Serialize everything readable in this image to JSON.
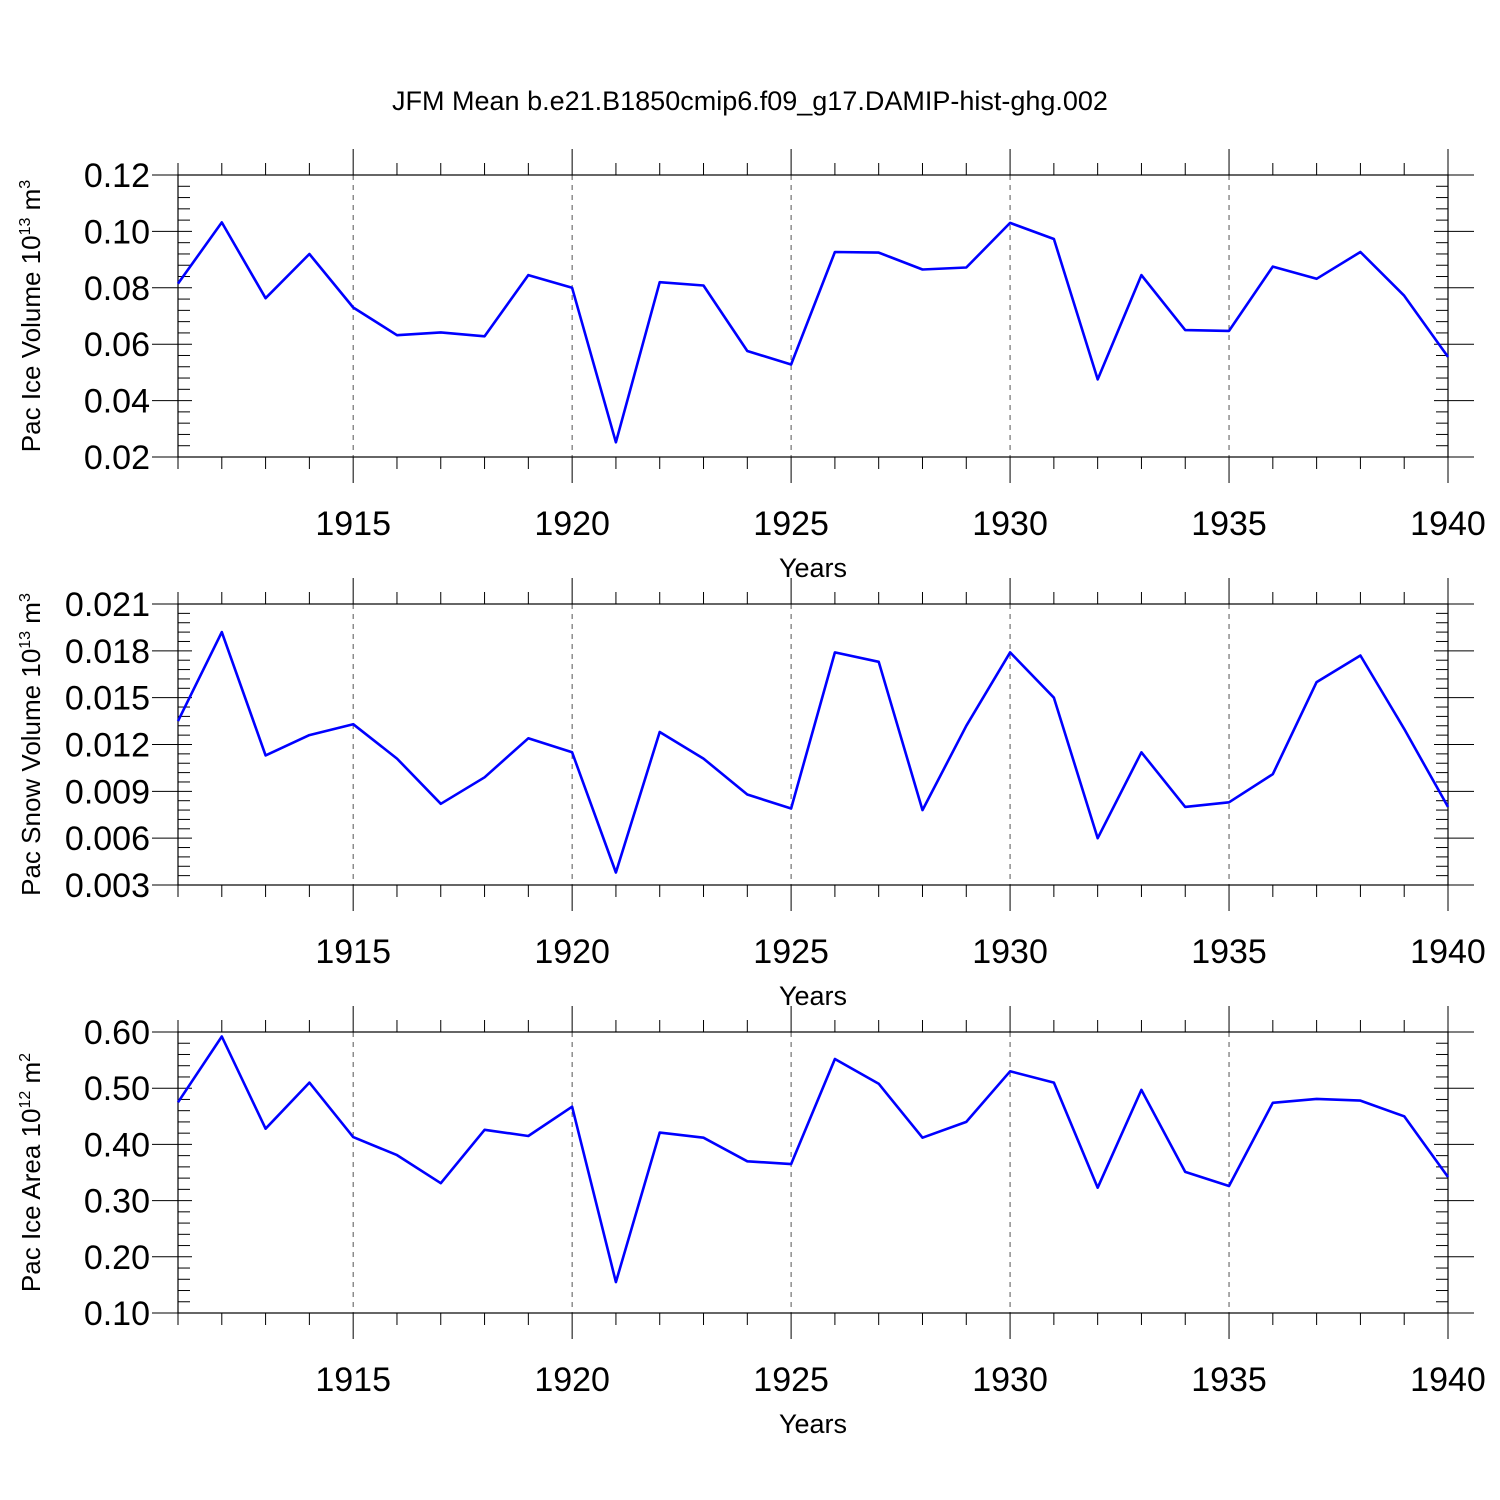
{
  "title": "JFM Mean b.e21.B1850cmip6.f09_g17.DAMIP-hist-ghg.002",
  "chart_data": [
    {
      "type": "line",
      "ylabel_main": "Pac Ice Volume 10",
      "ylabel_exp": "13",
      "ylabel_unit": " m",
      "ylabel_unit_exp": "3",
      "xlabel": "Years",
      "xlim": [
        1911,
        1940
      ],
      "ylim": [
        0.02,
        0.12
      ],
      "yticks": [
        0.02,
        0.04,
        0.06,
        0.08,
        0.1,
        0.12
      ],
      "ytick_labels": [
        "0.02",
        "0.04",
        "0.06",
        "0.08",
        "0.10",
        "0.12"
      ],
      "xticks": [
        1915,
        1920,
        1925,
        1930,
        1935,
        1940
      ],
      "xtick_labels": [
        "1915",
        "1920",
        "1925",
        "1930",
        "1935",
        "1940"
      ],
      "grid": "vertical dashed at labeled years",
      "line_color": "#0000ff",
      "x": [
        1911,
        1912,
        1913,
        1914,
        1915,
        1916,
        1917,
        1918,
        1919,
        1920,
        1921,
        1922,
        1923,
        1924,
        1925,
        1926,
        1927,
        1928,
        1929,
        1930,
        1931,
        1932,
        1933,
        1934,
        1935,
        1936,
        1937,
        1938,
        1939,
        1940
      ],
      "values": [
        0.0815,
        0.1032,
        0.0763,
        0.092,
        0.073,
        0.0632,
        0.0642,
        0.0628,
        0.0845,
        0.08,
        0.0252,
        0.082,
        0.0808,
        0.0576,
        0.0528,
        0.0927,
        0.0925,
        0.0865,
        0.0872,
        0.103,
        0.0973,
        0.0475,
        0.0845,
        0.065,
        0.0647,
        0.0875,
        0.0832,
        0.0927,
        0.0772,
        0.0555
      ]
    },
    {
      "type": "line",
      "ylabel_main": "Pac Snow Volume 10",
      "ylabel_exp": "13",
      "ylabel_unit": " m",
      "ylabel_unit_exp": "3",
      "xlabel": "Years",
      "xlim": [
        1911,
        1940
      ],
      "ylim": [
        0.003,
        0.021
      ],
      "yticks": [
        0.003,
        0.006,
        0.009,
        0.012,
        0.015,
        0.018,
        0.021
      ],
      "ytick_labels": [
        "0.003",
        "0.006",
        "0.009",
        "0.012",
        "0.015",
        "0.018",
        "0.021"
      ],
      "xticks": [
        1915,
        1920,
        1925,
        1930,
        1935,
        1940
      ],
      "xtick_labels": [
        "1915",
        "1920",
        "1925",
        "1930",
        "1935",
        "1940"
      ],
      "grid": "vertical dashed at labeled years",
      "line_color": "#0000ff",
      "x": [
        1911,
        1912,
        1913,
        1914,
        1915,
        1916,
        1917,
        1918,
        1919,
        1920,
        1921,
        1922,
        1923,
        1924,
        1925,
        1926,
        1927,
        1928,
        1929,
        1930,
        1931,
        1932,
        1933,
        1934,
        1935,
        1936,
        1937,
        1938,
        1939,
        1940
      ],
      "values": [
        0.0135,
        0.0192,
        0.0113,
        0.0126,
        0.0133,
        0.0111,
        0.0082,
        0.0099,
        0.0124,
        0.0115,
        0.0038,
        0.0128,
        0.0111,
        0.0088,
        0.0079,
        0.0179,
        0.0173,
        0.0078,
        0.0132,
        0.0179,
        0.015,
        0.006,
        0.0115,
        0.008,
        0.0083,
        0.0101,
        0.016,
        0.0177,
        0.013,
        0.008
      ]
    },
    {
      "type": "line",
      "ylabel_main": "Pac Ice Area 10",
      "ylabel_exp": "12",
      "ylabel_unit": " m",
      "ylabel_unit_exp": "2",
      "xlabel": "Years",
      "xlim": [
        1911,
        1940
      ],
      "ylim": [
        0.1,
        0.6
      ],
      "yticks": [
        0.1,
        0.2,
        0.3,
        0.4,
        0.5,
        0.6
      ],
      "ytick_labels": [
        "0.10",
        "0.20",
        "0.30",
        "0.40",
        "0.50",
        "0.60"
      ],
      "xticks": [
        1915,
        1920,
        1925,
        1930,
        1935,
        1940
      ],
      "xtick_labels": [
        "1915",
        "1920",
        "1925",
        "1930",
        "1935",
        "1940"
      ],
      "grid": "vertical dashed at labeled years",
      "line_color": "#0000ff",
      "x": [
        1911,
        1912,
        1913,
        1914,
        1915,
        1916,
        1917,
        1918,
        1919,
        1920,
        1921,
        1922,
        1923,
        1924,
        1925,
        1926,
        1927,
        1928,
        1929,
        1930,
        1931,
        1932,
        1933,
        1934,
        1935,
        1936,
        1937,
        1938,
        1939,
        1940
      ],
      "values": [
        0.475,
        0.592,
        0.428,
        0.51,
        0.413,
        0.381,
        0.331,
        0.426,
        0.415,
        0.467,
        0.155,
        0.421,
        0.412,
        0.37,
        0.365,
        0.552,
        0.508,
        0.412,
        0.44,
        0.53,
        0.51,
        0.323,
        0.497,
        0.351,
        0.326,
        0.474,
        0.481,
        0.478,
        0.45,
        0.342
      ]
    }
  ]
}
